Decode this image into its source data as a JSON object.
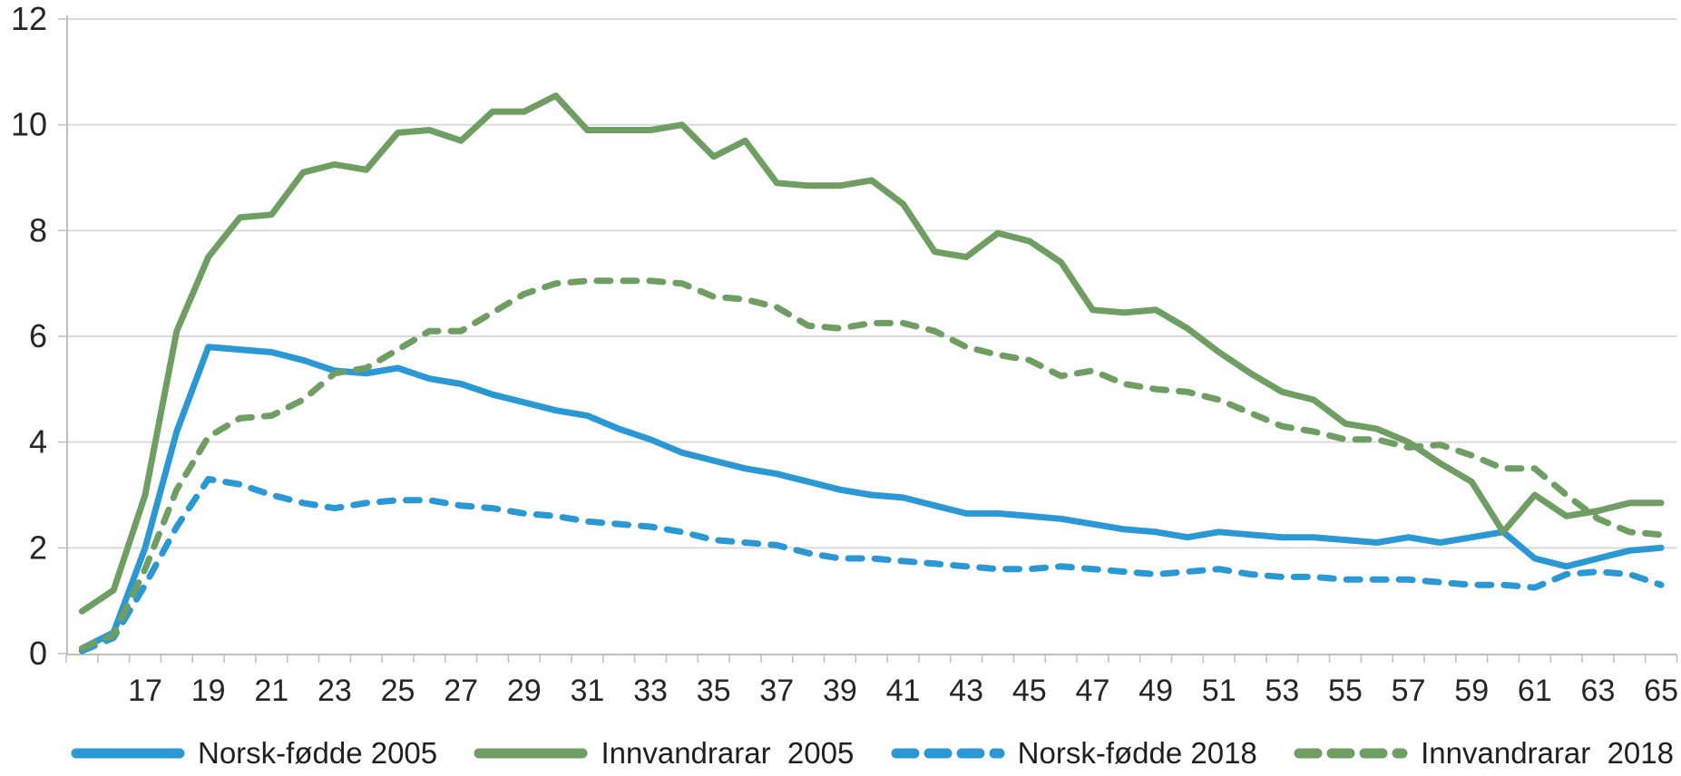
{
  "chart_data": {
    "type": "line",
    "title": "",
    "xlabel": "",
    "ylabel": "",
    "x": [
      15,
      16,
      17,
      18,
      19,
      20,
      21,
      22,
      23,
      24,
      25,
      26,
      27,
      28,
      29,
      30,
      31,
      32,
      33,
      34,
      35,
      36,
      37,
      38,
      39,
      40,
      41,
      42,
      43,
      44,
      45,
      46,
      47,
      48,
      49,
      50,
      51,
      52,
      53,
      54,
      55,
      56,
      57,
      58,
      59,
      60,
      61,
      62,
      63,
      64,
      65
    ],
    "x_tick_labels": [
      "17",
      "19",
      "21",
      "23",
      "25",
      "27",
      "29",
      "31",
      "33",
      "35",
      "37",
      "39",
      "41",
      "43",
      "45",
      "47",
      "49",
      "51",
      "53",
      "55",
      "57",
      "59",
      "61",
      "63",
      "65"
    ],
    "y_tick_labels": [
      "0",
      "2",
      "4",
      "6",
      "8",
      "10",
      "12"
    ],
    "ylim": [
      0,
      12
    ],
    "grid": true,
    "legend_position": "bottom",
    "series": [
      {
        "name": "Norsk-fødde 2005",
        "color": "#2A98D5",
        "dash": false,
        "values": [
          0.1,
          0.4,
          2.0,
          4.2,
          5.8,
          5.75,
          5.7,
          5.55,
          5.35,
          5.3,
          5.4,
          5.2,
          5.1,
          4.9,
          4.75,
          4.6,
          4.5,
          4.25,
          4.05,
          3.8,
          3.65,
          3.5,
          3.4,
          3.25,
          3.1,
          3.0,
          2.95,
          2.8,
          2.65,
          2.65,
          2.6,
          2.55,
          2.45,
          2.35,
          2.3,
          2.2,
          2.3,
          2.25,
          2.2,
          2.2,
          2.15,
          2.1,
          2.2,
          2.1,
          2.2,
          2.3,
          1.8,
          1.65,
          1.8,
          1.95,
          2.0
        ]
      },
      {
        "name": "Innvandrarar  2005",
        "color": "#6F9E63",
        "dash": false,
        "values": [
          0.8,
          1.2,
          3.0,
          6.1,
          7.5,
          8.25,
          8.3,
          9.1,
          9.25,
          9.15,
          9.85,
          9.9,
          9.7,
          10.25,
          10.25,
          10.55,
          9.9,
          9.9,
          9.9,
          10.0,
          9.4,
          9.7,
          8.9,
          8.85,
          8.85,
          8.95,
          8.5,
          7.6,
          7.5,
          7.95,
          7.8,
          7.4,
          6.5,
          6.45,
          6.5,
          6.15,
          5.7,
          5.3,
          4.95,
          4.8,
          4.35,
          4.25,
          4.0,
          3.6,
          3.25,
          2.3,
          3.0,
          2.6,
          2.7,
          2.85,
          2.85
        ]
      },
      {
        "name": "Norsk-fødde 2018",
        "color": "#2A98D5",
        "dash": true,
        "values": [
          0.05,
          0.3,
          1.3,
          2.4,
          3.3,
          3.2,
          3.0,
          2.85,
          2.75,
          2.85,
          2.9,
          2.9,
          2.8,
          2.75,
          2.65,
          2.6,
          2.5,
          2.45,
          2.4,
          2.3,
          2.15,
          2.1,
          2.05,
          1.9,
          1.8,
          1.8,
          1.75,
          1.7,
          1.65,
          1.6,
          1.6,
          1.65,
          1.6,
          1.55,
          1.5,
          1.55,
          1.6,
          1.5,
          1.45,
          1.45,
          1.4,
          1.4,
          1.4,
          1.35,
          1.3,
          1.3,
          1.25,
          1.5,
          1.55,
          1.5,
          1.3
        ]
      },
      {
        "name": "Innvandrarar  2018",
        "color": "#6F9E63",
        "dash": true,
        "values": [
          0.1,
          0.35,
          1.6,
          3.1,
          4.1,
          4.45,
          4.5,
          4.8,
          5.3,
          5.4,
          5.75,
          6.1,
          6.1,
          6.45,
          6.8,
          7.0,
          7.05,
          7.05,
          7.05,
          7.0,
          6.75,
          6.7,
          6.55,
          6.2,
          6.15,
          6.25,
          6.25,
          6.1,
          5.8,
          5.65,
          5.55,
          5.25,
          5.35,
          5.1,
          5.0,
          4.95,
          4.8,
          4.55,
          4.3,
          4.2,
          4.05,
          4.05,
          3.9,
          3.95,
          3.75,
          3.5,
          3.5,
          3.0,
          2.55,
          2.3,
          2.25
        ]
      }
    ]
  },
  "legend": {
    "items": [
      {
        "label": "Norsk-fødde 2005",
        "color": "#2A98D5",
        "dash": false
      },
      {
        "label": "Innvandrarar  2005",
        "color": "#6F9E63",
        "dash": false
      },
      {
        "label": "Norsk-fødde 2018",
        "color": "#2A98D5",
        "dash": true
      },
      {
        "label": "Innvandrarar  2018",
        "color": "#6F9E63",
        "dash": true
      }
    ]
  },
  "colors": {
    "blue": "#2A98D5",
    "green": "#6F9E63",
    "gridline": "#DADADA",
    "axis": "#BFBFBF",
    "tick": "#BFBFBF",
    "label_text": "#262626"
  }
}
